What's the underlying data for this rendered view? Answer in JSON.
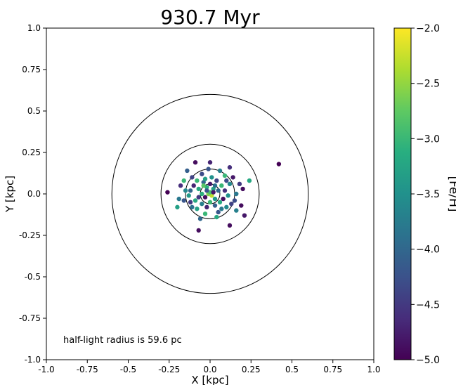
{
  "chart_data": {
    "type": "scatter",
    "title": "930.7 Myr",
    "xlabel": "X [kpc]",
    "ylabel": "Y [kpc]",
    "xlim": [
      -1.0,
      1.0
    ],
    "ylim": [
      -1.0,
      1.0
    ],
    "xticks": [
      "-1.0",
      "-0.75",
      "-0.5",
      "-0.25",
      "0.0",
      "0.25",
      "0.5",
      "0.75",
      "1.0"
    ],
    "yticks": [
      "1.0",
      "0.75",
      "0.5",
      "0.25",
      "0.0",
      "-0.25",
      "-0.5",
      "-0.75",
      "-1.0"
    ],
    "grid": false,
    "annotation": "half-light radius is 59.6 pc",
    "circles_radius_kpc": [
      0.06,
      0.15,
      0.3,
      0.6
    ],
    "colorbar": {
      "label": "[Fe/H]",
      "range": [
        -5.0,
        -2.0
      ],
      "ticks": [
        "−2.0",
        "−2.5",
        "−3.0",
        "−3.5",
        "−4.0",
        "−4.5",
        "−5.0"
      ],
      "colormap": "viridis"
    },
    "points": [
      {
        "x": 0.42,
        "y": 0.18,
        "feh": -5.0
      },
      {
        "x": -0.26,
        "y": 0.01,
        "feh": -5.0
      },
      {
        "x": -0.19,
        "y": -0.03,
        "feh": -3.8
      },
      {
        "x": -0.07,
        "y": -0.22,
        "feh": -4.9
      },
      {
        "x": 0.12,
        "y": -0.19,
        "feh": -4.9
      },
      {
        "x": 0.21,
        "y": -0.13,
        "feh": -4.8
      },
      {
        "x": 0.19,
        "y": -0.07,
        "feh": -4.9
      },
      {
        "x": 0.24,
        "y": 0.08,
        "feh": -3.2
      },
      {
        "x": 0.12,
        "y": 0.16,
        "feh": -4.6
      },
      {
        "x": 0.0,
        "y": 0.19,
        "feh": -4.7
      },
      {
        "x": -0.09,
        "y": 0.19,
        "feh": -4.9
      },
      {
        "x": -0.14,
        "y": 0.14,
        "feh": -4.1
      },
      {
        "x": -0.16,
        "y": 0.08,
        "feh": -3.0
      },
      {
        "x": -0.11,
        "y": 0.1,
        "feh": -4.4
      },
      {
        "x": -0.05,
        "y": 0.12,
        "feh": -4.3
      },
      {
        "x": 0.06,
        "y": 0.14,
        "feh": -3.7
      },
      {
        "x": 0.14,
        "y": 0.1,
        "feh": -4.8
      },
      {
        "x": 0.18,
        "y": 0.06,
        "feh": -4.5
      },
      {
        "x": 0.16,
        "y": 0.0,
        "feh": -3.8
      },
      {
        "x": 0.15,
        "y": -0.04,
        "feh": -4.3
      },
      {
        "x": 0.1,
        "y": -0.08,
        "feh": -3.6
      },
      {
        "x": 0.05,
        "y": -0.11,
        "feh": -4.2
      },
      {
        "x": -0.03,
        "y": -0.12,
        "feh": -3.0
      },
      {
        "x": -0.08,
        "y": -0.09,
        "feh": -3.3
      },
      {
        "x": -0.12,
        "y": -0.05,
        "feh": -4.5
      },
      {
        "x": -0.15,
        "y": 0.02,
        "feh": -3.6
      },
      {
        "x": -0.13,
        "y": -0.01,
        "feh": -3.4
      },
      {
        "x": -0.1,
        "y": 0.05,
        "feh": -4.7
      },
      {
        "x": -0.07,
        "y": 0.03,
        "feh": -3.2
      },
      {
        "x": -0.04,
        "y": 0.07,
        "feh": -4.0
      },
      {
        "x": -0.02,
        "y": 0.04,
        "feh": -3.1
      },
      {
        "x": 0.0,
        "y": 0.06,
        "feh": -4.8
      },
      {
        "x": 0.02,
        "y": 0.03,
        "feh": -3.3
      },
      {
        "x": 0.04,
        "y": 0.08,
        "feh": -4.4
      },
      {
        "x": 0.07,
        "y": 0.05,
        "feh": -3.0
      },
      {
        "x": 0.09,
        "y": 0.02,
        "feh": -4.6
      },
      {
        "x": 0.11,
        "y": -0.01,
        "feh": -3.5
      },
      {
        "x": 0.08,
        "y": -0.03,
        "feh": -4.9
      },
      {
        "x": 0.06,
        "y": -0.05,
        "feh": -3.2
      },
      {
        "x": 0.03,
        "y": -0.07,
        "feh": -4.1
      },
      {
        "x": 0.0,
        "y": -0.05,
        "feh": -3.0
      },
      {
        "x": -0.02,
        "y": -0.08,
        "feh": -4.7
      },
      {
        "x": -0.05,
        "y": -0.06,
        "feh": -3.7
      },
      {
        "x": -0.07,
        "y": -0.02,
        "feh": -4.5
      },
      {
        "x": -0.05,
        "y": 0.0,
        "feh": -3.1
      },
      {
        "x": -0.03,
        "y": -0.02,
        "feh": -4.9
      },
      {
        "x": -0.01,
        "y": 0.0,
        "feh": -2.6
      },
      {
        "x": 0.01,
        "y": -0.01,
        "feh": -2.3
      },
      {
        "x": 0.0,
        "y": 0.01,
        "feh": -2.9
      },
      {
        "x": 0.02,
        "y": 0.01,
        "feh": -4.8
      },
      {
        "x": -0.02,
        "y": 0.02,
        "feh": -4.2
      },
      {
        "x": 0.03,
        "y": -0.03,
        "feh": -3.4
      },
      {
        "x": -0.04,
        "y": 0.05,
        "feh": -2.8
      },
      {
        "x": 0.05,
        "y": 0.02,
        "feh": -4.0
      },
      {
        "x": 0.01,
        "y": 0.1,
        "feh": -3.5
      },
      {
        "x": -0.08,
        "y": 0.08,
        "feh": -3.0
      },
      {
        "x": 0.12,
        "y": 0.06,
        "feh": -3.6
      },
      {
        "x": 0.13,
        "y": -0.06,
        "feh": -4.4
      },
      {
        "x": -0.11,
        "y": -0.08,
        "feh": -3.9
      },
      {
        "x": -0.18,
        "y": 0.05,
        "feh": -4.6
      },
      {
        "x": 0.2,
        "y": 0.03,
        "feh": -4.9
      },
      {
        "x": -0.2,
        "y": -0.08,
        "feh": -3.3
      },
      {
        "x": 0.09,
        "y": 0.11,
        "feh": -3.0
      },
      {
        "x": -0.06,
        "y": -0.15,
        "feh": -4.0
      },
      {
        "x": 0.04,
        "y": -0.14,
        "feh": -3.2
      },
      {
        "x": -0.01,
        "y": 0.15,
        "feh": -4.2
      },
      {
        "x": 0.16,
        "y": -0.1,
        "feh": -3.7
      },
      {
        "x": -0.16,
        "y": -0.04,
        "feh": -4.2
      },
      {
        "x": 0.07,
        "y": -0.09,
        "feh": -3.8
      },
      {
        "x": -0.09,
        "y": -0.04,
        "feh": -3.2
      },
      {
        "x": 0.03,
        "y": 0.05,
        "feh": -3.9
      },
      {
        "x": -0.03,
        "y": 0.09,
        "feh": -3.3
      },
      {
        "x": 0.1,
        "y": 0.08,
        "feh": -4.3
      },
      {
        "x": -0.12,
        "y": 0.02,
        "feh": -4.0
      }
    ]
  }
}
